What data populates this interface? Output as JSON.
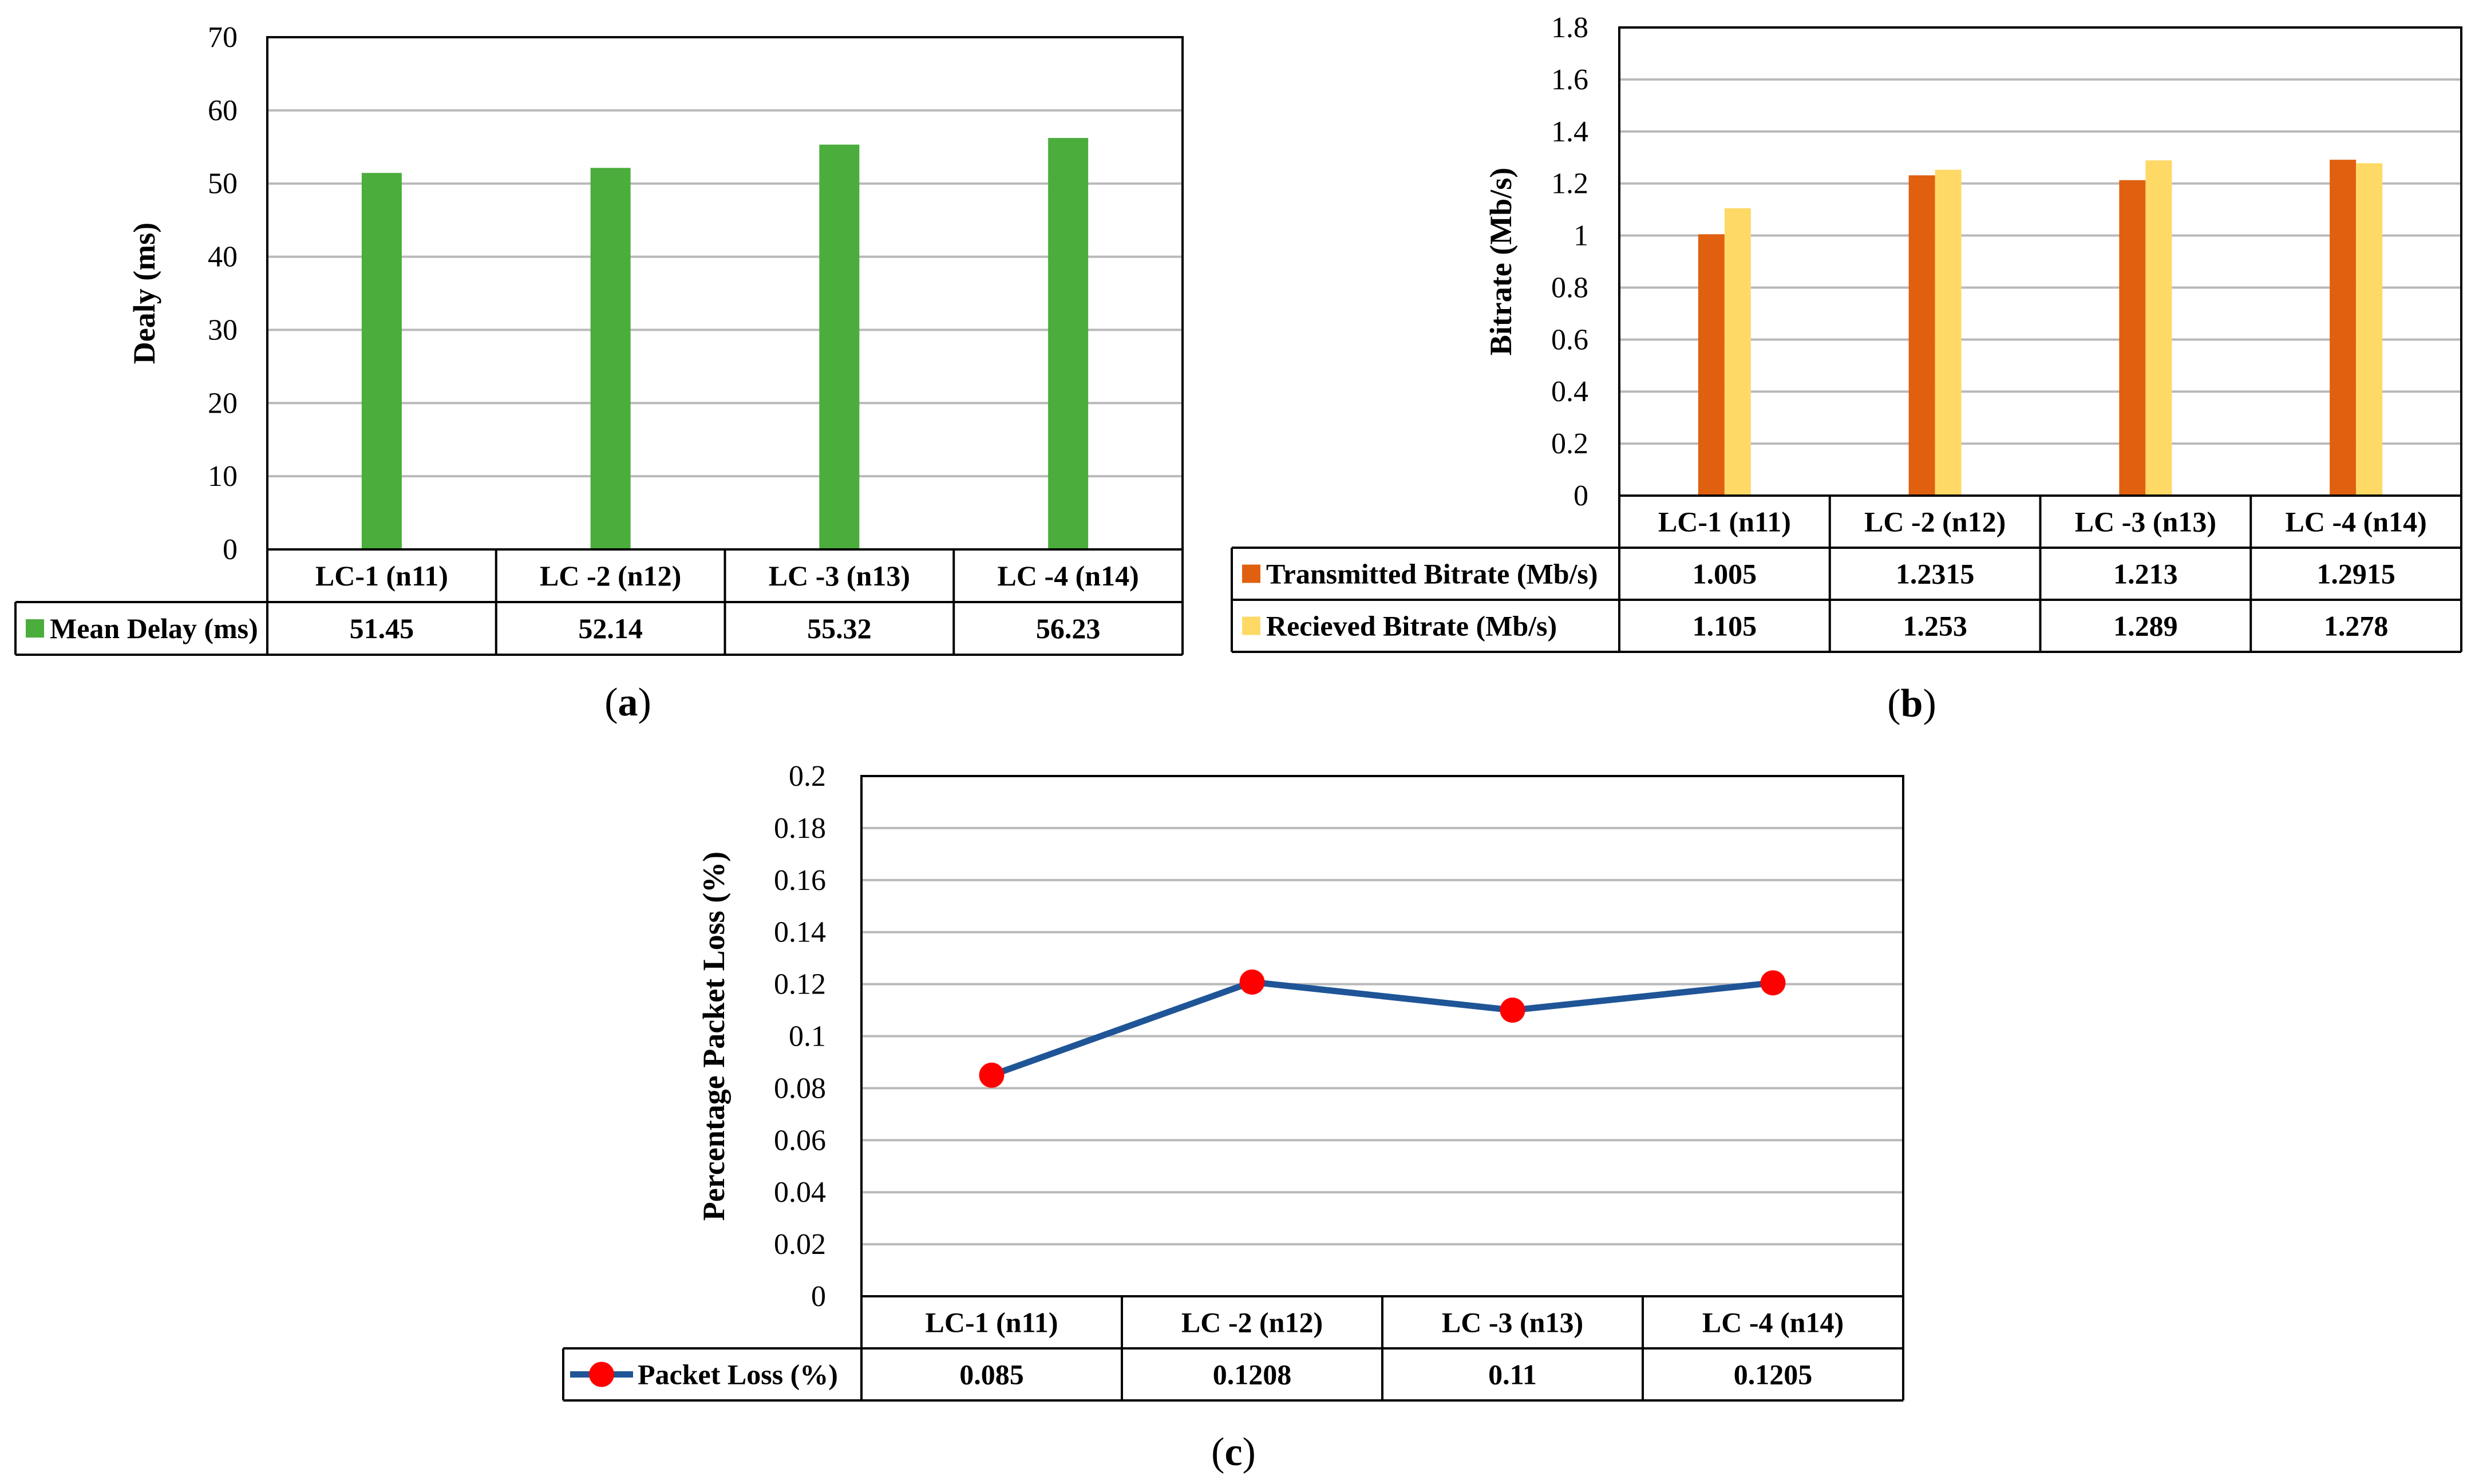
{
  "chart_data": [
    {
      "id": "a",
      "type": "bar",
      "panel_label": "a",
      "ylabel": "Dealy (ms)",
      "categories": [
        "LC-1 (n11)",
        "LC -2 (n12)",
        "LC -3 (n13)",
        "LC -4 (n14)"
      ],
      "ylim": [
        0,
        70
      ],
      "yticks": [
        "0",
        "10",
        "20",
        "30",
        "40",
        "50",
        "60",
        "70"
      ],
      "grid": true,
      "legend": "data-table",
      "series": [
        {
          "name": "Mean Delay (ms)",
          "color": "#4aad3c",
          "values": [
            51.45,
            52.14,
            55.32,
            56.23
          ],
          "labels": [
            "51.45",
            "52.14",
            "55.32",
            "56.23"
          ]
        }
      ]
    },
    {
      "id": "b",
      "type": "bar",
      "panel_label": "b",
      "ylabel": "Bitrate (Mb/s)",
      "categories": [
        "LC-1 (n11)",
        "LC -2 (n12)",
        "LC -3 (n13)",
        "LC -4 (n14)"
      ],
      "ylim": [
        0,
        1.8
      ],
      "yticks": [
        "0",
        "0.2",
        "0.4",
        "0.6",
        "0.8",
        "1",
        "1.2",
        "1.4",
        "1.6",
        "1.8"
      ],
      "grid": true,
      "legend": "data-table",
      "series": [
        {
          "name": "Transmitted Bitrate (Mb/s)",
          "color": "#e06010",
          "values": [
            1.005,
            1.2315,
            1.213,
            1.2915
          ],
          "labels": [
            "1.005",
            "1.2315",
            "1.213",
            "1.2915"
          ]
        },
        {
          "name": "Recieved Bitrate (Mb/s)",
          "color": "#ffd966",
          "values": [
            1.105,
            1.253,
            1.289,
            1.278
          ],
          "labels": [
            "1.105",
            "1.253",
            "1.289",
            "1.278"
          ]
        }
      ]
    },
    {
      "id": "c",
      "type": "line",
      "panel_label": "c",
      "ylabel": "Percentage Packet Loss (%)",
      "categories": [
        "LC-1 (n11)",
        "LC -2 (n12)",
        "LC -3 (n13)",
        "LC -4 (n14)"
      ],
      "ylim": [
        0,
        0.2
      ],
      "yticks": [
        "0",
        "0.02",
        "0.04",
        "0.06",
        "0.08",
        "0.1",
        "0.12",
        "0.14",
        "0.16",
        "0.18",
        "0.2"
      ],
      "grid": true,
      "legend": "data-table",
      "series": [
        {
          "name": "Packet Loss (%)",
          "color": "#1f5597",
          "marker_color": "#ff0000",
          "values": [
            0.085,
            0.1208,
            0.11,
            0.1205
          ],
          "labels": [
            "0.085",
            "0.1208",
            "0.11",
            "0.1205"
          ]
        }
      ]
    }
  ]
}
